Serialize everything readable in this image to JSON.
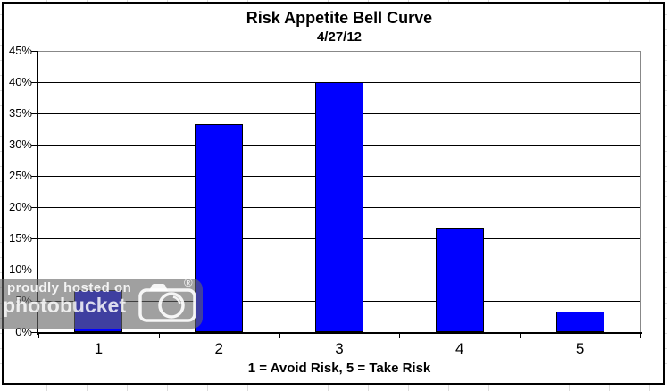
{
  "chart_data": {
    "type": "bar",
    "title": "Risk Appetite Bell Curve",
    "subtitle": "4/27/12",
    "categories": [
      "1",
      "2",
      "3",
      "4",
      "5"
    ],
    "values": [
      6.7,
      33.3,
      40.0,
      16.7,
      3.3
    ],
    "xlabel": "1 = Avoid Risk, 5 = Take Risk",
    "ylabel": "",
    "ylim": [
      0,
      45
    ],
    "ytick_labels": [
      "45%",
      "40%",
      "35%",
      "30%",
      "25%",
      "20%",
      "15%",
      "10%",
      "5%",
      "0%"
    ],
    "grid": true,
    "legend": false,
    "colors": {
      "bar_fill": "#0000ff",
      "bar_border": "#000000",
      "gridline": "#000000",
      "plot_border": "#888888",
      "text": "#000000"
    }
  },
  "watermark": {
    "line1": "proudly hosted on",
    "line2": "photobucket",
    "registered_mark": "®",
    "icon": "camera-icon"
  }
}
